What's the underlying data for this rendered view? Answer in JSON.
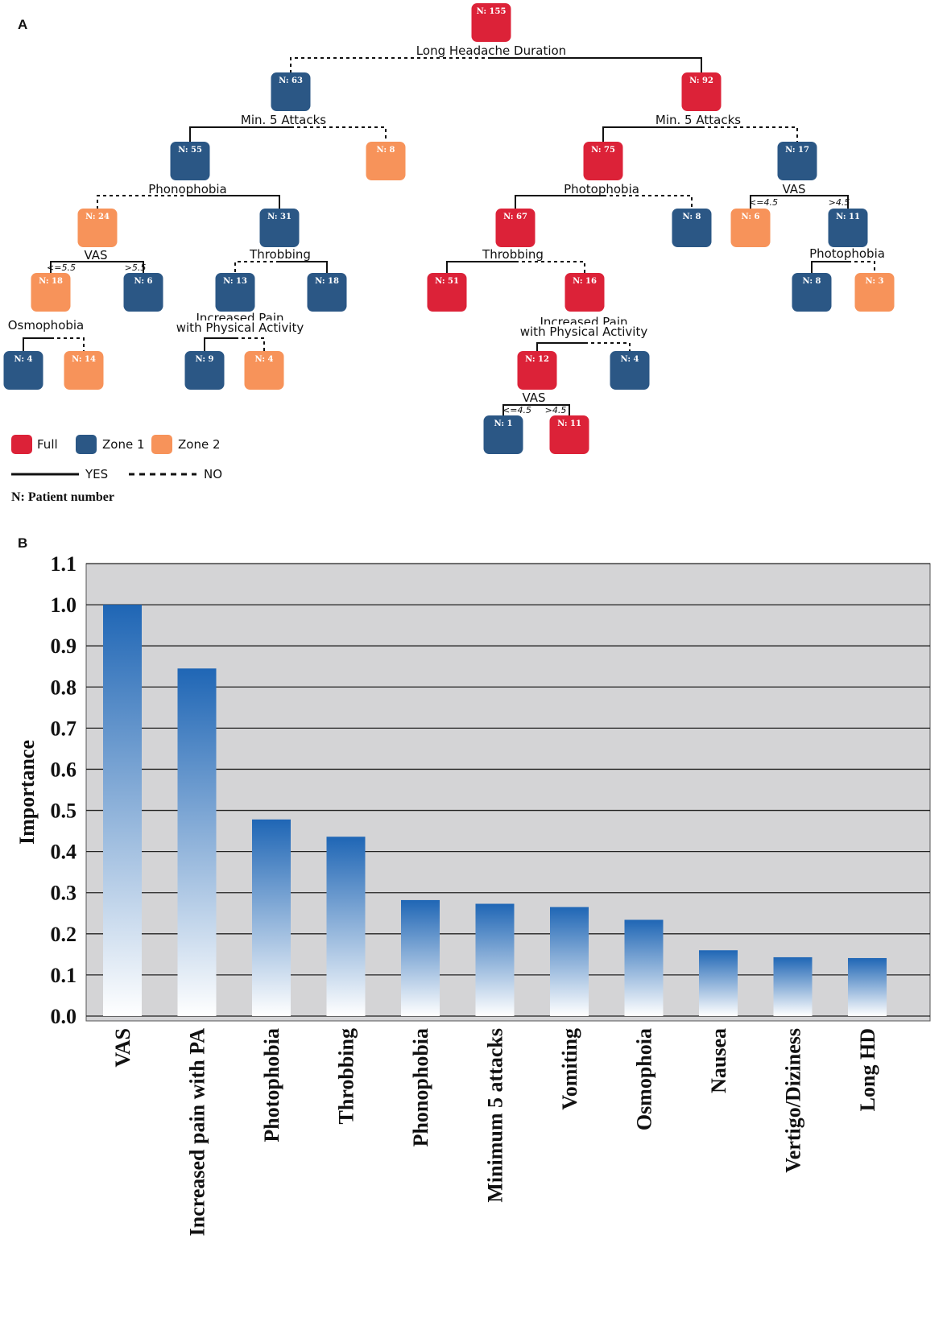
{
  "panel_a_label": "A",
  "panel_b_label": "B",
  "colors": {
    "full": "#dc2238",
    "zone1": "#2b5785",
    "zone2": "#f7935a",
    "bar_top": "#1f66b5",
    "bar_bottom": "#ffffff",
    "plot_bg": "#d4d4d6"
  },
  "tree": {
    "nodes": [
      {
        "id": "n1",
        "label": "N: 155",
        "cls": "full"
      },
      {
        "id": "n2",
        "label": "N: 63",
        "cls": "zone1"
      },
      {
        "id": "n3",
        "label": "N: 92",
        "cls": "full"
      },
      {
        "id": "n4",
        "label": "N: 55",
        "cls": "zone1"
      },
      {
        "id": "n5",
        "label": "N: 8",
        "cls": "zone2"
      },
      {
        "id": "n6",
        "label": "N: 75",
        "cls": "full"
      },
      {
        "id": "n7",
        "label": "N: 17",
        "cls": "zone1"
      },
      {
        "id": "n8",
        "label": "N: 24",
        "cls": "zone2"
      },
      {
        "id": "n9",
        "label": "N: 31",
        "cls": "zone1"
      },
      {
        "id": "n10",
        "label": "N: 67",
        "cls": "full"
      },
      {
        "id": "n11",
        "label": "N: 8",
        "cls": "zone1"
      },
      {
        "id": "n12",
        "label": "N: 6",
        "cls": "zone2"
      },
      {
        "id": "n13",
        "label": "N: 11",
        "cls": "zone1"
      },
      {
        "id": "n14",
        "label": "N: 18",
        "cls": "zone2"
      },
      {
        "id": "n15",
        "label": "N: 6",
        "cls": "zone1"
      },
      {
        "id": "n16",
        "label": "N: 13",
        "cls": "zone1"
      },
      {
        "id": "n17",
        "label": "N: 18",
        "cls": "zone1"
      },
      {
        "id": "n18",
        "label": "N: 51",
        "cls": "full"
      },
      {
        "id": "n19",
        "label": "N: 16",
        "cls": "full"
      },
      {
        "id": "n20",
        "label": "N: 8",
        "cls": "zone1"
      },
      {
        "id": "n21",
        "label": "N: 3",
        "cls": "zone2"
      },
      {
        "id": "n22",
        "label": "N: 4",
        "cls": "zone1"
      },
      {
        "id": "n23",
        "label": "N: 14",
        "cls": "zone2"
      },
      {
        "id": "n24",
        "label": "N: 9",
        "cls": "zone1"
      },
      {
        "id": "n25",
        "label": "N: 4",
        "cls": "zone2"
      },
      {
        "id": "n26",
        "label": "N: 12",
        "cls": "full"
      },
      {
        "id": "n27",
        "label": "N: 4",
        "cls": "zone1"
      },
      {
        "id": "n28",
        "label": "N: 1",
        "cls": "zone1"
      },
      {
        "id": "n29",
        "label": "N: 11",
        "cls": "full"
      }
    ],
    "splits": [
      {
        "id": "s1",
        "text": "Long Headache Duration"
      },
      {
        "id": "s2",
        "text": "Min. 5 Attacks"
      },
      {
        "id": "s3",
        "text": "Min. 5 Attacks"
      },
      {
        "id": "s4",
        "text": "Phonophobia"
      },
      {
        "id": "s5",
        "text": "Photophobia"
      },
      {
        "id": "s6",
        "text": "VAS"
      },
      {
        "id": "s7",
        "text": "VAS"
      },
      {
        "id": "s8",
        "text": "Throbbing"
      },
      {
        "id": "s9",
        "text": "Throbbing"
      },
      {
        "id": "s10",
        "text": "Photophobia"
      },
      {
        "id": "s11",
        "text": "Osmophobia"
      },
      {
        "id": "s12a",
        "text": "Increased Pain"
      },
      {
        "id": "s12b",
        "text": "with Physical Activity"
      },
      {
        "id": "s13a",
        "text": "Increased Pain"
      },
      {
        "id": "s13b",
        "text": "with Physical Activity"
      },
      {
        "id": "s14",
        "text": "VAS"
      }
    ],
    "thresholds": [
      {
        "id": "t1",
        "text": "<=4.5"
      },
      {
        "id": "t2",
        "text": ">4.5"
      },
      {
        "id": "t3",
        "text": "<=5.5"
      },
      {
        "id": "t4",
        "text": ">5.5"
      },
      {
        "id": "t5",
        "text": "<=4.5"
      },
      {
        "id": "t6",
        "text": ">4.5"
      }
    ]
  },
  "legend": {
    "full_label": "Full",
    "zone1_label": "Zone 1",
    "zone2_label": "Zone 2",
    "yes_label": "YES",
    "no_label": "NO",
    "note": "N: Patient number"
  },
  "chart_data": {
    "type": "bar",
    "title": "",
    "xlabel": "",
    "ylabel": "Importance",
    "ylim": [
      0,
      1.1
    ],
    "yticks": [
      "0.0",
      "0.1",
      "0.2",
      "0.3",
      "0.4",
      "0.5",
      "0.6",
      "0.7",
      "0.8",
      "0.9",
      "1.0",
      "1.1"
    ],
    "grid": true,
    "categories": [
      "VAS",
      "Increased pain with PA",
      "Photophobia",
      "Throbbing",
      "Phonophobia",
      "Minimum 5 attacks",
      "Vomiting",
      "Osmophoia",
      "Nausea",
      "Vertigo/Diziness",
      "Long HD"
    ],
    "values": [
      1.0,
      0.845,
      0.478,
      0.436,
      0.282,
      0.273,
      0.265,
      0.234,
      0.16,
      0.143,
      0.141
    ]
  }
}
